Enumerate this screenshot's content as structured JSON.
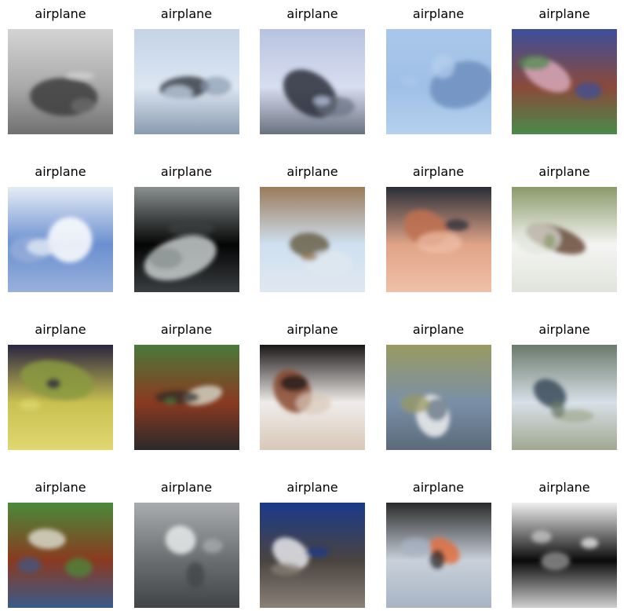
{
  "figure": {
    "grid": {
      "rows": 4,
      "cols": 5
    },
    "images": [
      {
        "label": "airplane",
        "subject": "blurry grey bird-like shape over grey ground",
        "palette": [
          "#a9a9a9",
          "#d4d4d4",
          "#3d3d3d",
          "#707070"
        ]
      },
      {
        "label": "airplane",
        "subject": "dark winged shape on pale blue sky",
        "palette": [
          "#dce6f2",
          "#c4d3e6",
          "#3a3f48",
          "#8a9bb0"
        ]
      },
      {
        "label": "airplane",
        "subject": "dark bird-like airplane on light lavender sky",
        "palette": [
          "#d8def0",
          "#b8c2e0",
          "#2b2f3a",
          "#6a7180"
        ]
      },
      {
        "label": "airplane",
        "subject": "tiny plane in plain blue sky",
        "palette": [
          "#9fc0e6",
          "#a9c7ea",
          "#6f8fc0",
          "#b6d0ee"
        ]
      },
      {
        "label": "airplane",
        "subject": "colourful noisy red-brown blob",
        "palette": [
          "#8a4a3a",
          "#3c4f9a",
          "#d8a8b8",
          "#4a8a4a"
        ]
      },
      {
        "label": "airplane",
        "subject": "white shapes in blue sky with clouds",
        "palette": [
          "#6a8fd0",
          "#e6ecf6",
          "#ffffff",
          "#9ab0dc"
        ]
      },
      {
        "label": "airplane",
        "subject": "grey plane shape on black background",
        "palette": [
          "#050505",
          "#8a9090",
          "#c8cccc",
          "#3a3e40"
        ]
      },
      {
        "label": "airplane",
        "subject": "brownish bird on light sky over field",
        "palette": [
          "#cfe0f0",
          "#9a7a5a",
          "#6a6048",
          "#e0e8f0"
        ]
      },
      {
        "label": "airplane",
        "subject": "dark plane on orange-pink sunset sky",
        "palette": [
          "#e0a488",
          "#2a2e38",
          "#c07050",
          "#f0c0a8"
        ]
      },
      {
        "label": "airplane",
        "subject": "green-brown shapes on white background",
        "palette": [
          "#f4f4f2",
          "#8a9a6a",
          "#6a4a3a",
          "#e0e4dc"
        ]
      },
      {
        "label": "airplane",
        "subject": "dark shape over yellow-green field",
        "palette": [
          "#c8c050",
          "#2a2440",
          "#8a9a40",
          "#e0d870"
        ]
      },
      {
        "label": "airplane",
        "subject": "colourful noisy red building-like blob with greenery",
        "palette": [
          "#8a3a20",
          "#4a7a3a",
          "#d0d0c0",
          "#2a2a2a"
        ]
      },
      {
        "label": "airplane",
        "subject": "black-white-brown abstract blur",
        "palette": [
          "#f0ecea",
          "#1a1616",
          "#8a4a30",
          "#d8c8b8"
        ]
      },
      {
        "label": "airplane",
        "subject": "white airliner on runway under grey-blue sky",
        "palette": [
          "#7a90a8",
          "#9a9a60",
          "#f0f0f0",
          "#5a6a7a"
        ]
      },
      {
        "label": "airplane",
        "subject": "grey-green airport scene",
        "palette": [
          "#d8e0e8",
          "#6a7a6a",
          "#3a4a5a",
          "#a0a890"
        ]
      },
      {
        "label": "airplane",
        "subject": "colourful noisy red building-like blob",
        "palette": [
          "#8a3a20",
          "#4a8a3a",
          "#d8d8c8",
          "#3a5a8a"
        ]
      },
      {
        "label": "airplane",
        "subject": "white plane on grey ground",
        "palette": [
          "#6a6e70",
          "#a8acae",
          "#e8eaea",
          "#404446"
        ]
      },
      {
        "label": "airplane",
        "subject": "blue-and-white plane on dark background",
        "palette": [
          "#4a4440",
          "#1a3a8a",
          "#e8e8ec",
          "#8a8078"
        ]
      },
      {
        "label": "airplane",
        "subject": "small dark object with orange on pale grey-blue",
        "palette": [
          "#c8d0da",
          "#2a2a2a",
          "#e07040",
          "#a8b4c4"
        ]
      },
      {
        "label": "airplane",
        "subject": "black and white blocky shape",
        "palette": [
          "#0a0a0a",
          "#f0f0f0",
          "#8a8a8a",
          "#d0d0d0"
        ]
      }
    ]
  }
}
